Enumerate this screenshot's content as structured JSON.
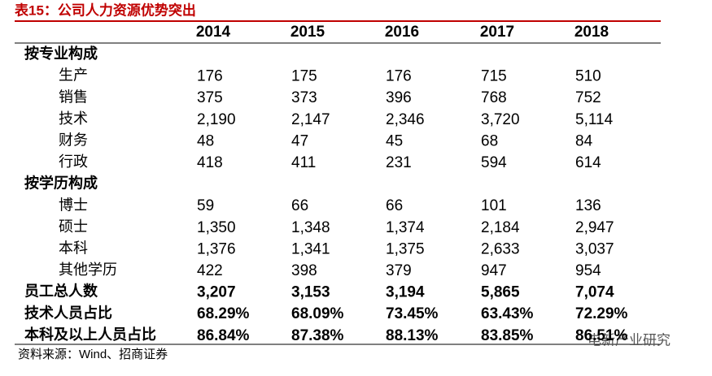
{
  "header": {
    "title": "表15：公司人力资源优势突出"
  },
  "table": {
    "columns": [
      "2014",
      "2015",
      "2016",
      "2017",
      "2018"
    ],
    "groups": [
      {
        "title": "按专业构成",
        "rows": [
          {
            "label": "生产",
            "values": [
              "176",
              "175",
              "176",
              "715",
              "510"
            ]
          },
          {
            "label": "销售",
            "values": [
              "375",
              "373",
              "396",
              "768",
              "752"
            ]
          },
          {
            "label": "技术",
            "values": [
              "2,190",
              "2,147",
              "2,346",
              "3,720",
              "5,114"
            ]
          },
          {
            "label": "财务",
            "values": [
              "48",
              "47",
              "45",
              "68",
              "84"
            ]
          },
          {
            "label": "行政",
            "values": [
              "418",
              "411",
              "231",
              "594",
              "614"
            ]
          }
        ]
      },
      {
        "title": "按学历构成",
        "rows": [
          {
            "label": "博士",
            "values": [
              "59",
              "66",
              "66",
              "101",
              "136"
            ]
          },
          {
            "label": "硕士",
            "values": [
              "1,350",
              "1,348",
              "1,374",
              "2,184",
              "2,947"
            ]
          },
          {
            "label": "本科",
            "values": [
              "1,376",
              "1,341",
              "1,375",
              "2,633",
              "3,037"
            ]
          },
          {
            "label": "其他学历",
            "values": [
              "422",
              "398",
              "379",
              "947",
              "954"
            ]
          }
        ]
      }
    ],
    "summary": [
      {
        "label": "员工总人数",
        "values": [
          "3,207",
          "3,153",
          "3,194",
          "5,865",
          "7,074"
        ]
      },
      {
        "label": "技术人员占比",
        "values": [
          "68.29%",
          "68.09%",
          "73.45%",
          "63.43%",
          "72.29%"
        ]
      },
      {
        "label": "本科及以上人员占比",
        "values": [
          "86.84%",
          "87.38%",
          "88.13%",
          "83.85%",
          "86.51%"
        ]
      }
    ]
  },
  "footer": {
    "source": "资料来源：Wind、招商证券",
    "watermark": "电新产业研究"
  }
}
